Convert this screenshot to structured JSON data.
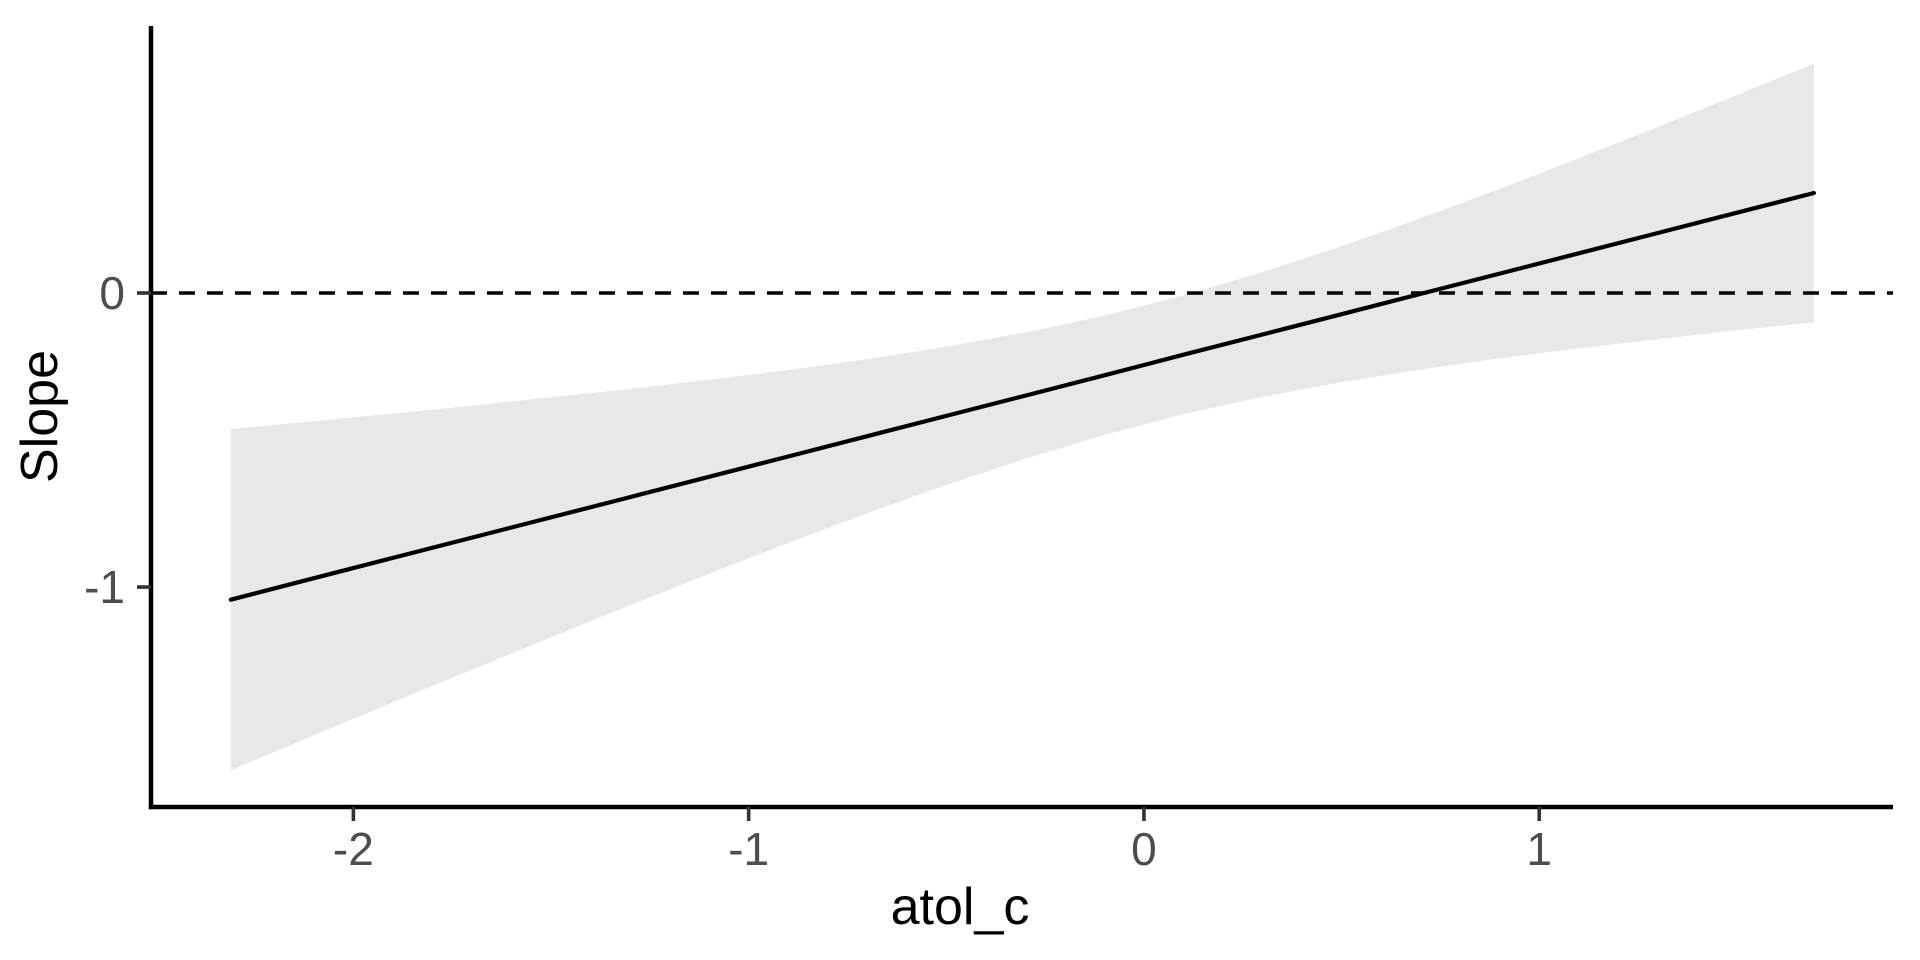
{
  "chart_data": {
    "type": "line",
    "title": "",
    "xlabel": "atol_c",
    "ylabel": "Slope",
    "xlim": [
      -2.512,
      1.895
    ],
    "ylim": [
      -1.748,
      0.908
    ],
    "x_ticks": [
      -2,
      -1,
      0,
      1
    ],
    "y_ticks": [
      0,
      -1
    ],
    "grid": "off",
    "legend": "none",
    "reference_line": {
      "y": 0,
      "style": "dashed",
      "color": "#000000"
    },
    "regression": {
      "intercept": -0.245,
      "slope": 0.345,
      "x_zero_crossing": 0.71
    },
    "series": [
      {
        "name": "fitted-slope-with-ci",
        "x": [
          -2.31,
          -2.1,
          -1.9,
          -1.7,
          -1.5,
          -1.3,
          -1.1,
          -0.9,
          -0.7,
          -0.5,
          -0.3,
          -0.1,
          0.1,
          0.3,
          0.5,
          0.7,
          0.9,
          1.1,
          1.3,
          1.5,
          1.695
        ],
        "y": [
          -1.043,
          -0.97,
          -0.901,
          -0.832,
          -0.763,
          -0.694,
          -0.625,
          -0.556,
          -0.487,
          -0.418,
          -0.349,
          -0.28,
          -0.21,
          -0.141,
          -0.072,
          -0.003,
          0.066,
          0.135,
          0.204,
          0.273,
          0.34
        ],
        "ci_lower": [
          -1.623,
          -1.504,
          -1.392,
          -1.281,
          -1.171,
          -1.062,
          -0.955,
          -0.85,
          -0.749,
          -0.653,
          -0.564,
          -0.483,
          -0.412,
          -0.353,
          -0.303,
          -0.26,
          -0.222,
          -0.188,
          -0.157,
          -0.127,
          -0.1
        ],
        "ci_upper": [
          -0.463,
          -0.436,
          -0.41,
          -0.383,
          -0.355,
          -0.326,
          -0.295,
          -0.262,
          -0.225,
          -0.183,
          -0.134,
          -0.077,
          -0.008,
          0.071,
          0.159,
          0.254,
          0.354,
          0.458,
          0.565,
          0.673,
          0.78
        ]
      }
    ],
    "colors": {
      "line": "#000000",
      "ribbon": "#e8e8e8",
      "axis": "#000000",
      "tick": "#333333",
      "tick_label": "#4d4d4d",
      "background": "#ffffff"
    }
  }
}
